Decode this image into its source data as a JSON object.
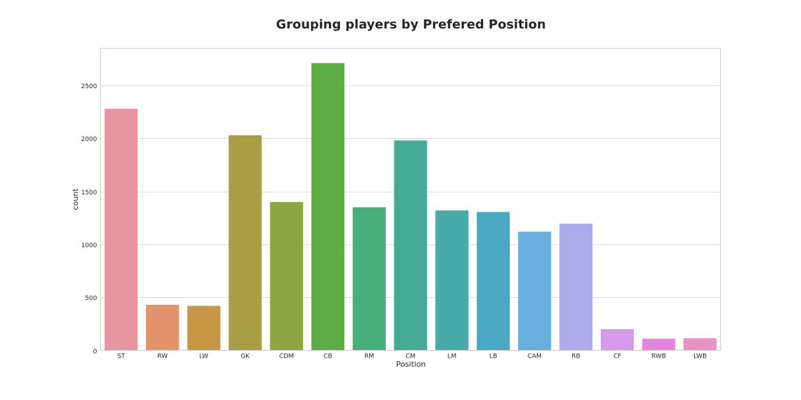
{
  "chart_data": {
    "type": "bar",
    "title": "Grouping players by Prefered Position",
    "xlabel": "Position",
    "ylabel": "count",
    "categories": [
      "ST",
      "RW",
      "LW",
      "GK",
      "CDM",
      "CB",
      "RM",
      "CM",
      "LM",
      "LB",
      "CAM",
      "RB",
      "CF",
      "RWB",
      "LWB"
    ],
    "values": [
      2280,
      430,
      420,
      2030,
      1400,
      2710,
      1350,
      1980,
      1320,
      1305,
      1120,
      1195,
      200,
      110,
      115
    ],
    "colors": [
      "#e8959f",
      "#e4926b",
      "#c69846",
      "#a99e45",
      "#8fa544",
      "#5dad44",
      "#47ae79",
      "#46aa96",
      "#49aaaa",
      "#4aa8c3",
      "#6aaee0",
      "#aeaaea",
      "#d59ae8",
      "#e684e0",
      "#e891c3"
    ],
    "yticks": [
      0,
      500,
      1000,
      1500,
      2000,
      2500
    ],
    "ylim": [
      0,
      2850
    ],
    "grid": true
  }
}
